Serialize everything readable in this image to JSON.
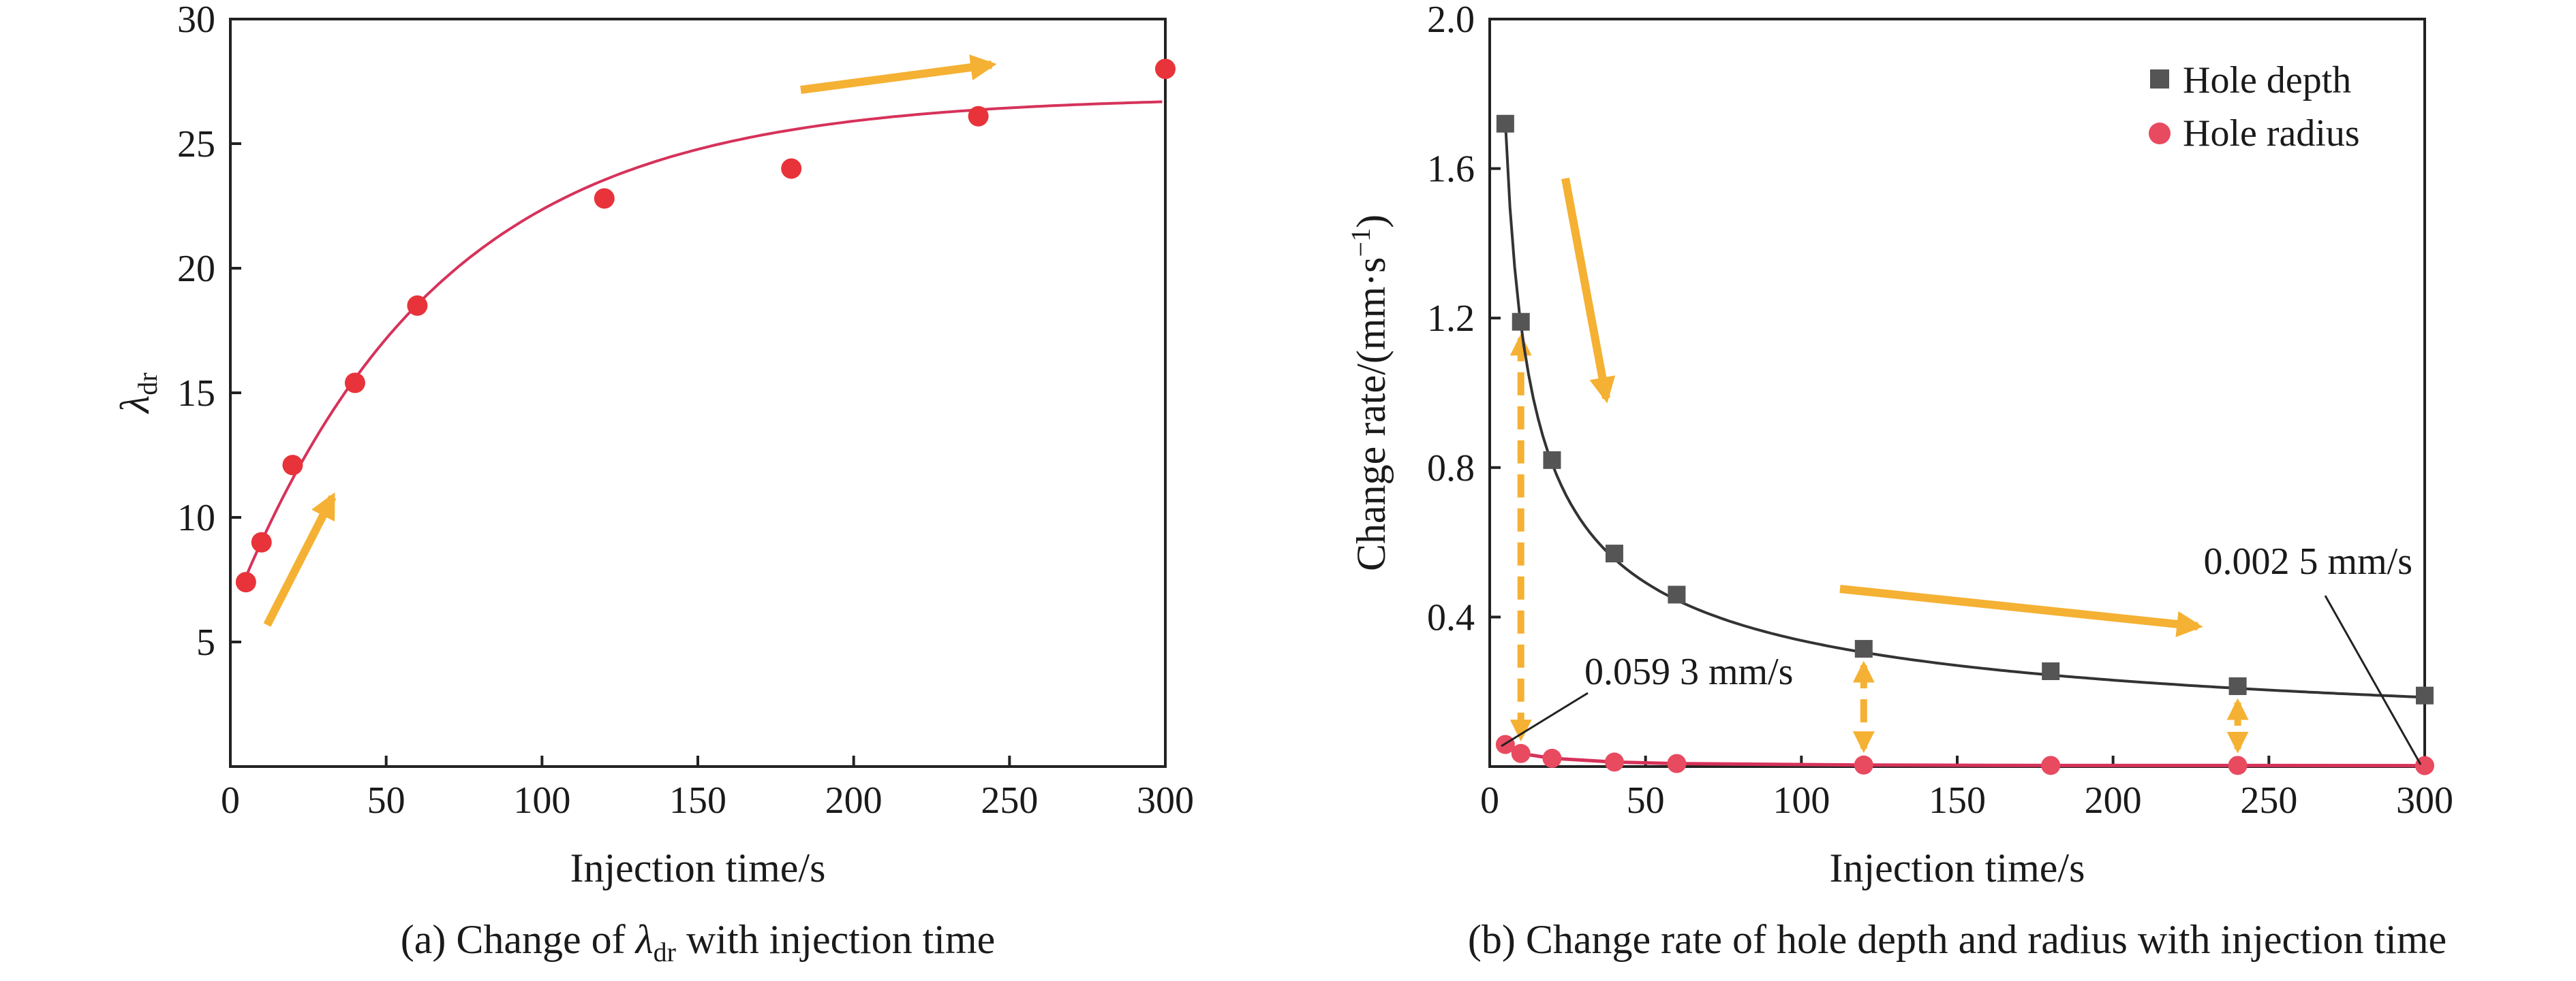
{
  "colors": {
    "fit_a": "#d6325a",
    "points_a": "#e8333a",
    "depth": "#555555",
    "radius": "#e84a5f",
    "radius_line": "#d6325a",
    "arrow": "#f5b133",
    "axis": "#222222"
  },
  "chart_data": [
    {
      "type": "scatter",
      "caption_prefix": "(a) Change of ",
      "caption_symbol": "λ",
      "caption_sub": "dr",
      "caption_suffix": " with injection time",
      "xlabel": "Injection time/s",
      "ylabel_symbol": "λ",
      "ylabel_sub": "dr",
      "xlim": [
        0,
        300
      ],
      "ylim": [
        0,
        30
      ],
      "x_ticks": [
        "0",
        "50",
        "100",
        "150",
        "200",
        "250",
        "300"
      ],
      "y_ticks": [
        "5",
        "10",
        "15",
        "20",
        "25",
        "30"
      ],
      "points": [
        {
          "x": 5,
          "y": 7.4
        },
        {
          "x": 10,
          "y": 9.0
        },
        {
          "x": 20,
          "y": 12.1
        },
        {
          "x": 40,
          "y": 15.4
        },
        {
          "x": 60,
          "y": 18.5
        },
        {
          "x": 120,
          "y": 22.8
        },
        {
          "x": 180,
          "y": 24.0
        },
        {
          "x": 240,
          "y": 26.1
        },
        {
          "x": 300,
          "y": 28.0
        }
      ],
      "fit_curve": "exponential-rise",
      "arrows": [
        "up-right near start",
        "right near top"
      ]
    },
    {
      "type": "line",
      "caption": "(b) Change rate of hole depth and radius with injection time",
      "xlabel": "Injection time/s",
      "ylabel_main": "Change rate/(mm·s",
      "ylabel_sup": "−1",
      "ylabel_close": ")",
      "xlim": [
        0,
        300
      ],
      "ylim": [
        0,
        2.0
      ],
      "x_ticks": [
        "0",
        "50",
        "100",
        "150",
        "200",
        "250",
        "300"
      ],
      "y_ticks": [
        "0.4",
        "0.8",
        "1.2",
        "1.6",
        "2.0"
      ],
      "legend_position": "top-right",
      "series": [
        {
          "name": "Hole depth",
          "marker": "square",
          "points": [
            {
              "x": 5,
              "y": 1.72
            },
            {
              "x": 10,
              "y": 1.19
            },
            {
              "x": 20,
              "y": 0.82
            },
            {
              "x": 40,
              "y": 0.57
            },
            {
              "x": 60,
              "y": 0.46
            },
            {
              "x": 120,
              "y": 0.315
            },
            {
              "x": 180,
              "y": 0.255
            },
            {
              "x": 240,
              "y": 0.215
            },
            {
              "x": 300,
              "y": 0.19
            }
          ]
        },
        {
          "name": "Hole radius",
          "marker": "circle",
          "points": [
            {
              "x": 5,
              "y": 0.059
            },
            {
              "x": 10,
              "y": 0.035
            },
            {
              "x": 20,
              "y": 0.022
            },
            {
              "x": 40,
              "y": 0.012
            },
            {
              "x": 60,
              "y": 0.008
            },
            {
              "x": 120,
              "y": 0.004
            },
            {
              "x": 180,
              "y": 0.003
            },
            {
              "x": 240,
              "y": 0.003
            },
            {
              "x": 300,
              "y": 0.0025
            }
          ]
        }
      ],
      "annotations": [
        {
          "text": "0.059 3 mm/s",
          "x": 5,
          "y": 0.059
        },
        {
          "text": "0.002 5 mm/s",
          "x": 300,
          "y": 0.0025
        }
      ],
      "vertical_gap_markers_x": [
        10,
        120,
        240
      ],
      "arrows": [
        "downward near steep drop",
        "right along tail"
      ]
    }
  ]
}
